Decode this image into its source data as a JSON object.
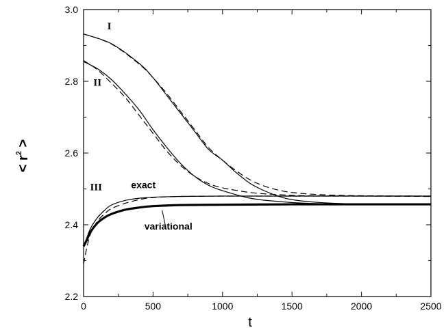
{
  "chart_data": {
    "type": "line",
    "title": "",
    "xlabel": "t",
    "ylabel": {
      "open": "< r",
      "sup": "2",
      "close": " >"
    },
    "xlim": [
      0,
      2500
    ],
    "ylim": [
      2.2,
      3.0
    ],
    "xticks": [
      0,
      500,
      1000,
      1500,
      2000,
      2500
    ],
    "yticks": [
      2.2,
      2.4,
      2.6,
      2.8,
      3.0
    ],
    "xtick_labels": [
      "0",
      "500",
      "1000",
      "1500",
      "2000",
      "2500"
    ],
    "ytick_labels": [
      "2.2",
      "2.4",
      "2.6",
      "2.8",
      "3.0"
    ],
    "grid": false,
    "series": [
      {
        "group": "I",
        "style": "solid",
        "x": [
          0,
          200,
          400,
          500,
          600,
          700,
          800,
          900,
          1000,
          1100,
          1200,
          1300,
          1400,
          1500,
          1700,
          2000,
          2500
        ],
        "y": [
          2.932,
          2.905,
          2.85,
          2.81,
          2.76,
          2.71,
          2.66,
          2.61,
          2.58,
          2.545,
          2.515,
          2.495,
          2.48,
          2.47,
          2.462,
          2.458,
          2.457
        ]
      },
      {
        "group": "I",
        "style": "dashed",
        "x": [
          0,
          200,
          400,
          500,
          600,
          700,
          800,
          900,
          1000,
          1100,
          1200,
          1300,
          1400,
          1500,
          1700,
          2000,
          2500
        ],
        "y": [
          2.932,
          2.904,
          2.848,
          2.81,
          2.765,
          2.715,
          2.665,
          2.615,
          2.58,
          2.55,
          2.525,
          2.508,
          2.497,
          2.49,
          2.484,
          2.481,
          2.48
        ]
      },
      {
        "group": "II",
        "style": "solid",
        "x": [
          0,
          100,
          200,
          300,
          400,
          500,
          600,
          700,
          800,
          900,
          1000,
          1200,
          1400,
          1600,
          2000,
          2500
        ],
        "y": [
          2.855,
          2.835,
          2.805,
          2.765,
          2.72,
          2.665,
          2.615,
          2.57,
          2.535,
          2.51,
          2.495,
          2.474,
          2.465,
          2.46,
          2.457,
          2.457
        ]
      },
      {
        "group": "II",
        "style": "dashed",
        "x": [
          0,
          100,
          200,
          300,
          400,
          500,
          600,
          700,
          800,
          900,
          1000,
          1200,
          1400,
          1600,
          2000,
          2500
        ],
        "y": [
          2.858,
          2.832,
          2.795,
          2.755,
          2.705,
          2.655,
          2.605,
          2.565,
          2.535,
          2.515,
          2.503,
          2.49,
          2.484,
          2.481,
          2.48,
          2.479
        ]
      },
      {
        "group": "III",
        "style": "solid",
        "x": [
          0,
          20,
          50,
          100,
          150,
          200,
          300,
          400,
          500,
          700,
          1000,
          1500,
          2000,
          2500
        ],
        "y": [
          2.34,
          2.36,
          2.39,
          2.42,
          2.44,
          2.455,
          2.468,
          2.474,
          2.477,
          2.479,
          2.48,
          2.48,
          2.48,
          2.48
        ]
      },
      {
        "group": "III",
        "style": "dashed",
        "x": [
          0,
          20,
          50,
          100,
          150,
          200,
          300,
          400,
          500,
          700,
          1000,
          1500,
          2000,
          2500
        ],
        "y": [
          2.29,
          2.33,
          2.375,
          2.41,
          2.43,
          2.445,
          2.46,
          2.47,
          2.476,
          2.479,
          2.48,
          2.48,
          2.48,
          2.48
        ]
      },
      {
        "group": "III",
        "style": "solid-thick",
        "x": [
          0,
          20,
          50,
          100,
          150,
          200,
          300,
          400,
          500,
          700,
          1000,
          1500,
          2000,
          2500
        ],
        "y": [
          2.34,
          2.355,
          2.38,
          2.405,
          2.42,
          2.43,
          2.442,
          2.448,
          2.452,
          2.455,
          2.456,
          2.457,
          2.457,
          2.457
        ]
      }
    ],
    "annotations": [
      {
        "text": "I",
        "x": 185,
        "y": 2.945,
        "class": "roman"
      },
      {
        "text": "II",
        "x": 100,
        "y": 2.788,
        "class": "roman"
      },
      {
        "text": "III",
        "x": 90,
        "y": 2.496,
        "class": "roman"
      },
      {
        "text": "exact",
        "x": 430,
        "y": 2.502,
        "class": "ann"
      },
      {
        "text": "variational",
        "x": 610,
        "y": 2.387,
        "class": "ann"
      }
    ],
    "pointer": {
      "x1": 590,
      "y1": 2.396,
      "x2": 565,
      "y2": 2.441
    }
  }
}
